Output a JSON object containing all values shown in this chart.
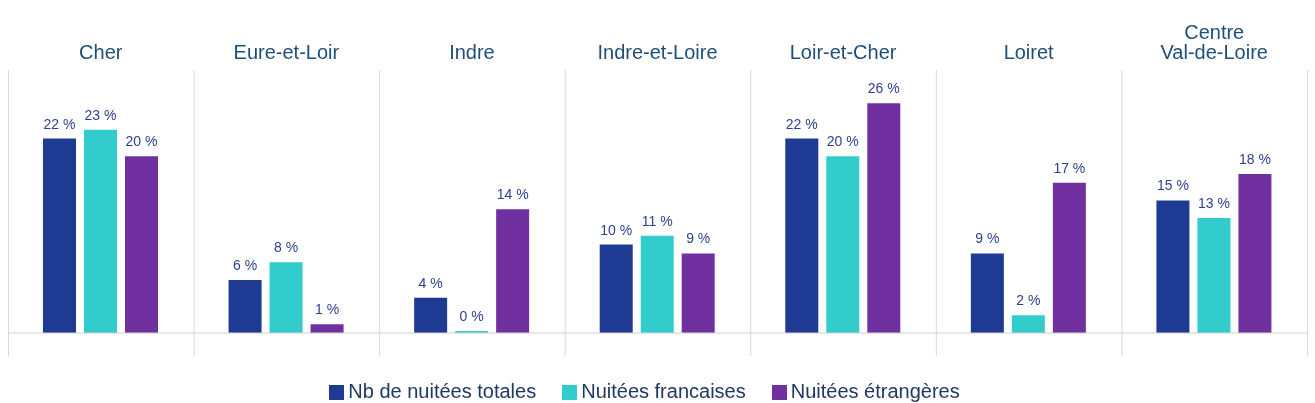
{
  "chart_data": {
    "type": "bar",
    "categories": [
      "Cher",
      "Eure-et-Loir",
      "Indre",
      "Indre-et-Loire",
      "Loir-et-Cher",
      "Loiret",
      "Centre Val-de-Loire"
    ],
    "series": [
      {
        "name": "Nb de  nuitées totales",
        "color": "#1f3a93",
        "values": [
          22,
          6,
          4,
          10,
          22,
          9,
          15
        ],
        "value_labels": [
          "22 %",
          "6 %",
          "4 %",
          "10 %",
          "22 %",
          "9 %",
          "15 %"
        ]
      },
      {
        "name": "Nuitées francaises",
        "color": "#33cccc",
        "values": [
          23,
          8,
          0,
          11,
          20,
          2,
          13
        ],
        "value_labels": [
          "23 %",
          "8 %",
          "0 %",
          "11 %",
          "20 %",
          "2 %",
          "13 %"
        ]
      },
      {
        "name": "Nuitées étrangères",
        "color": "#7030a0",
        "values": [
          20,
          1,
          14,
          9,
          26,
          17,
          18
        ],
        "value_labels": [
          "20 %",
          "1 %",
          "14 %",
          "9 %",
          "26 %",
          "17 %",
          "18 %"
        ]
      }
    ],
    "legend": "bottom",
    "grid": false
  }
}
